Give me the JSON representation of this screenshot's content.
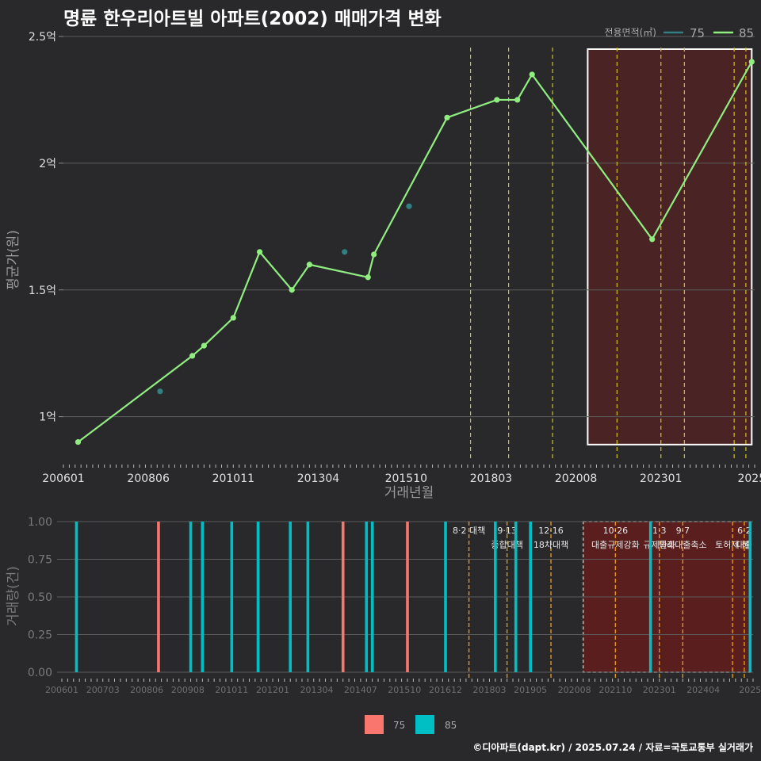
{
  "title": "명륜 한우리아트빌 아파트(2002) 매매가격 변화",
  "footer": "©디아파트(dapt.kr) / 2025.07.24 / 자료=국토교통부 실거래가",
  "colors": {
    "background": "#29292b",
    "series_75_top": "#2f7f83",
    "series_85_top": "#90ee80",
    "series_75_bottom": "#f8766d",
    "series_85_bottom": "#00bfc4",
    "policy_line": "#d4c21a",
    "policy_line_bottom": "#e8960e",
    "highlight_fill": "#4a2324",
    "highlight_fill_bottom": "#5a1e1e"
  },
  "chart_data": [
    {
      "type": "line",
      "title": "명륜 한우리아트빌 아파트(2002) 매매가격 변화",
      "xlabel": "거래년월",
      "ylabel": "평균가(원)",
      "x_tick_labels": [
        "200601",
        "200806",
        "201011",
        "201304",
        "201510",
        "201803",
        "202008",
        "202301",
        "2025"
      ],
      "y_tick_labels": [
        "1억",
        "1.5억",
        "2억",
        "2.5억"
      ],
      "y_ticks_억": [
        1,
        1.5,
        2,
        2.5
      ],
      "xlim": [
        "2006-01",
        "2025-09"
      ],
      "ylim_억": [
        0.83,
        2.55
      ],
      "legend": {
        "title": "전용면적(㎡)",
        "entries": [
          "75",
          "85"
        ],
        "position": "top-right"
      },
      "highlight_period": [
        "2020-12",
        "2025-08"
      ],
      "policy_lines": [
        "2017-08",
        "2018-09",
        "2019-12",
        "2021-10",
        "2023-01",
        "2023-09",
        "2025-02",
        "2025-06"
      ],
      "series": [
        {
          "name": "75",
          "mode": "points",
          "points": [
            {
              "x": "2008-10",
              "y": 1.1
            },
            {
              "x": "2014-01",
              "y": 1.65
            },
            {
              "x": "2015-11",
              "y": 1.83
            }
          ]
        },
        {
          "name": "85",
          "mode": "line",
          "points": [
            {
              "x": "2006-06",
              "y": 0.9
            },
            {
              "x": "2009-09",
              "y": 1.24
            },
            {
              "x": "2010-01",
              "y": 1.28
            },
            {
              "x": "2010-11",
              "y": 1.39
            },
            {
              "x": "2011-08",
              "y": 1.65
            },
            {
              "x": "2012-07",
              "y": 1.5
            },
            {
              "x": "2013-01",
              "y": 1.6
            },
            {
              "x": "2014-09",
              "y": 1.55
            },
            {
              "x": "2014-11",
              "y": 1.64
            },
            {
              "x": "2016-12",
              "y": 2.18
            },
            {
              "x": "2018-05",
              "y": 2.25
            },
            {
              "x": "2018-12",
              "y": 2.25
            },
            {
              "x": "2019-05",
              "y": 2.35
            },
            {
              "x": "2022-10",
              "y": 1.7
            },
            {
              "x": "2025-08",
              "y": 2.4
            }
          ]
        }
      ]
    },
    {
      "type": "bar",
      "ylabel": "거래량(건)",
      "y_tick_labels": [
        "0.00",
        "0.25",
        "0.50",
        "0.75",
        "1.00"
      ],
      "ylim": [
        0,
        1
      ],
      "x_tick_labels": [
        "200601",
        "200703",
        "200806",
        "200908",
        "201011",
        "201201",
        "201304",
        "201407",
        "201510",
        "201612",
        "201803",
        "201905",
        "202008",
        "202110",
        "202301",
        "202404",
        "2025"
      ],
      "legend": {
        "entries": [
          "75",
          "85"
        ],
        "position": "bottom"
      },
      "highlight_period": [
        "2020-11",
        "2025-08"
      ],
      "bars": [
        {
          "x": "2006-06",
          "series": "85",
          "value": 1
        },
        {
          "x": "2008-10",
          "series": "75",
          "value": 1
        },
        {
          "x": "2009-09",
          "series": "85",
          "value": 1
        },
        {
          "x": "2010-01",
          "series": "85",
          "value": 1
        },
        {
          "x": "2010-11",
          "series": "85",
          "value": 1
        },
        {
          "x": "2011-08",
          "series": "85",
          "value": 1
        },
        {
          "x": "2012-07",
          "series": "85",
          "value": 1
        },
        {
          "x": "2013-01",
          "series": "85",
          "value": 1
        },
        {
          "x": "2014-01",
          "series": "75",
          "value": 1
        },
        {
          "x": "2014-09",
          "series": "85",
          "value": 1
        },
        {
          "x": "2014-11",
          "series": "85",
          "value": 1
        },
        {
          "x": "2015-11",
          "series": "75",
          "value": 1
        },
        {
          "x": "2016-12",
          "series": "85",
          "value": 1
        },
        {
          "x": "2018-05",
          "series": "85",
          "value": 1
        },
        {
          "x": "2018-12",
          "series": "85",
          "value": 1
        },
        {
          "x": "2019-05",
          "series": "85",
          "value": 1
        },
        {
          "x": "2022-10",
          "series": "85",
          "value": 1
        },
        {
          "x": "2025-08",
          "series": "85",
          "value": 1
        }
      ],
      "policy_annotations": [
        {
          "x": "2017-08",
          "date": "8·2 대책",
          "label": ""
        },
        {
          "x": "2018-09",
          "date": "9·13",
          "label": "종합대책"
        },
        {
          "x": "2019-12",
          "date": "12·16",
          "label": "18차대책"
        },
        {
          "x": "2021-10",
          "date": "10·26",
          "label": "대출규제강화"
        },
        {
          "x": "2023-01",
          "date": "1·3",
          "label": "규제완화"
        },
        {
          "x": "2023-09",
          "date": "9·7",
          "label": "특례대출축소"
        },
        {
          "x": "2025-02",
          "date": "",
          "label": "토허제 해"
        },
        {
          "x": "2025-06",
          "date": "6·2",
          "label": "대출"
        }
      ]
    }
  ]
}
